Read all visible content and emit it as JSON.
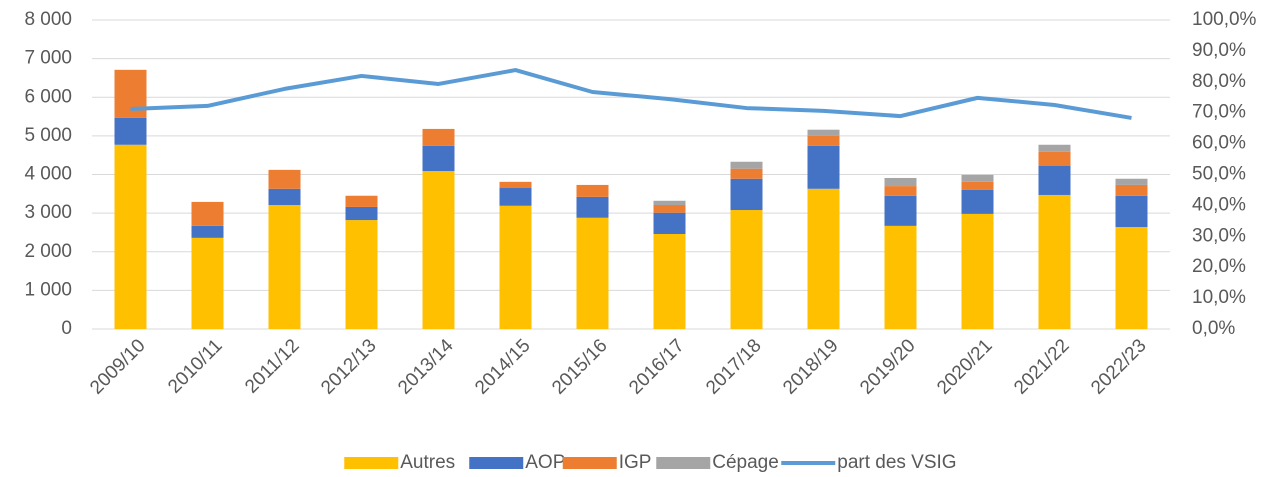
{
  "chart_data": {
    "type": "bar",
    "stacked": true,
    "categories": [
      "2009/10",
      "2010/11",
      "2011/12",
      "2012/13",
      "2013/14",
      "2014/15",
      "2015/16",
      "2016/17",
      "2017/18",
      "2018/19",
      "2019/20",
      "2020/21",
      "2021/22",
      "2022/23"
    ],
    "series": [
      {
        "name": "Autres",
        "color": "#FFC000",
        "values": [
          4770,
          2360,
          3210,
          2820,
          4090,
          3190,
          2880,
          2460,
          3080,
          3630,
          2670,
          2980,
          3470,
          2640
        ]
      },
      {
        "name": "AOP",
        "color": "#4472C4",
        "values": [
          700,
          310,
          420,
          340,
          650,
          460,
          540,
          550,
          810,
          1110,
          780,
          620,
          750,
          810
        ]
      },
      {
        "name": "IGP",
        "color": "#ED7D31",
        "values": [
          1240,
          620,
          490,
          290,
          440,
          160,
          310,
          200,
          260,
          260,
          250,
          210,
          370,
          280
        ]
      },
      {
        "name": "Cépage",
        "color": "#A5A5A5",
        "values": [
          0,
          0,
          0,
          0,
          0,
          0,
          0,
          110,
          180,
          160,
          210,
          180,
          180,
          160
        ]
      },
      {
        "name": "part des VSIG",
        "color": "#5B9BD5",
        "type": "line",
        "axis": "y2",
        "values": [
          71.2,
          72.2,
          77.7,
          81.9,
          79.3,
          83.8,
          76.7,
          74.4,
          71.5,
          70.6,
          68.9,
          74.8,
          72.5,
          68.3
        ]
      }
    ],
    "ylim": [
      0,
      8000
    ],
    "yticks": [
      0,
      {
        "value": 1000,
        "label": "1 000"
      },
      {
        "value": 2000,
        "label": "2 000"
      },
      {
        "value": 3000,
        "label": "3 000"
      },
      {
        "value": 4000,
        "label": "4 000"
      },
      {
        "value": 5000,
        "label": "5 000"
      },
      {
        "value": 6000,
        "label": "6 000"
      },
      {
        "value": 7000,
        "label": "7 000"
      },
      {
        "value": 8000,
        "label": "8 000"
      }
    ],
    "y2lim": [
      0,
      100
    ],
    "y2ticks": [
      {
        "value": 0,
        "label": "0,0%"
      },
      {
        "value": 10,
        "label": "10,0%"
      },
      {
        "value": 20,
        "label": "20,0%"
      },
      {
        "value": 30,
        "label": "30,0%"
      },
      {
        "value": 40,
        "label": "40,0%"
      },
      {
        "value": 50,
        "label": "50,0%"
      },
      {
        "value": 60,
        "label": "60,0%"
      },
      {
        "value": 70,
        "label": "70,0%"
      },
      {
        "value": 80,
        "label": "80,0%"
      },
      {
        "value": 90,
        "label": "90,0%"
      },
      {
        "value": 100,
        "label": "100,0%"
      }
    ],
    "grid": true,
    "legend": "bottom"
  }
}
